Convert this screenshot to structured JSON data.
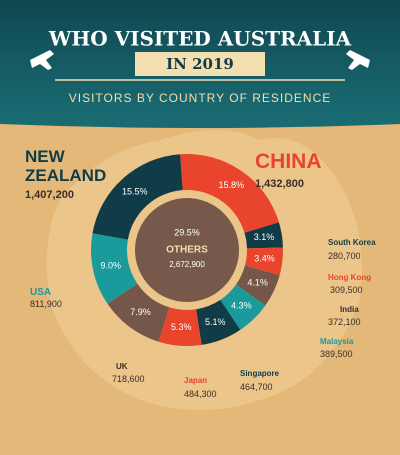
{
  "title": "WHO VISITED AUSTRALIA",
  "year": "IN 2019",
  "subtitle": "VISITORS BY COUNTRY OF RESIDENCE",
  "chart_data": {
    "type": "donut",
    "categories": [
      "NEW ZEALAND",
      "CHINA",
      "South Korea",
      "Hong Kong",
      "India",
      "Malaysia",
      "Singapore",
      "Japan",
      "UK",
      "USA"
    ],
    "values": [
      15.5,
      15.8,
      3.1,
      3.4,
      4.1,
      4.3,
      5.1,
      5.3,
      7.9,
      9.0
    ],
    "value_labels": [
      "15.5%",
      "15.8%",
      "3.1%",
      "3.4%",
      "4.1%",
      "4.3%",
      "5.1%",
      "5.3%",
      "7.9%",
      "9.0%"
    ],
    "visitors": [
      1407200,
      1432800,
      280700,
      309500,
      372100,
      389500,
      464700,
      484300,
      718600,
      811900
    ],
    "visitor_labels": [
      "1,407,200",
      "1,432,800",
      "280,700",
      "309,500",
      "372,100",
      "389,500",
      "464,700",
      "484,300",
      "718,600",
      "811,900"
    ],
    "colors": [
      "#103c48",
      "#e8452c",
      "#103c48",
      "#e8452c",
      "#75574a",
      "#1a9a9a",
      "#103c48",
      "#e8452c",
      "#75574a",
      "#1a9a9a"
    ],
    "others": {
      "name": "OTHERS",
      "value": 29.5,
      "value_label": "29.5%",
      "visitors": 2672900,
      "visitor_label": "2,672,900",
      "color": "#76594b"
    }
  }
}
